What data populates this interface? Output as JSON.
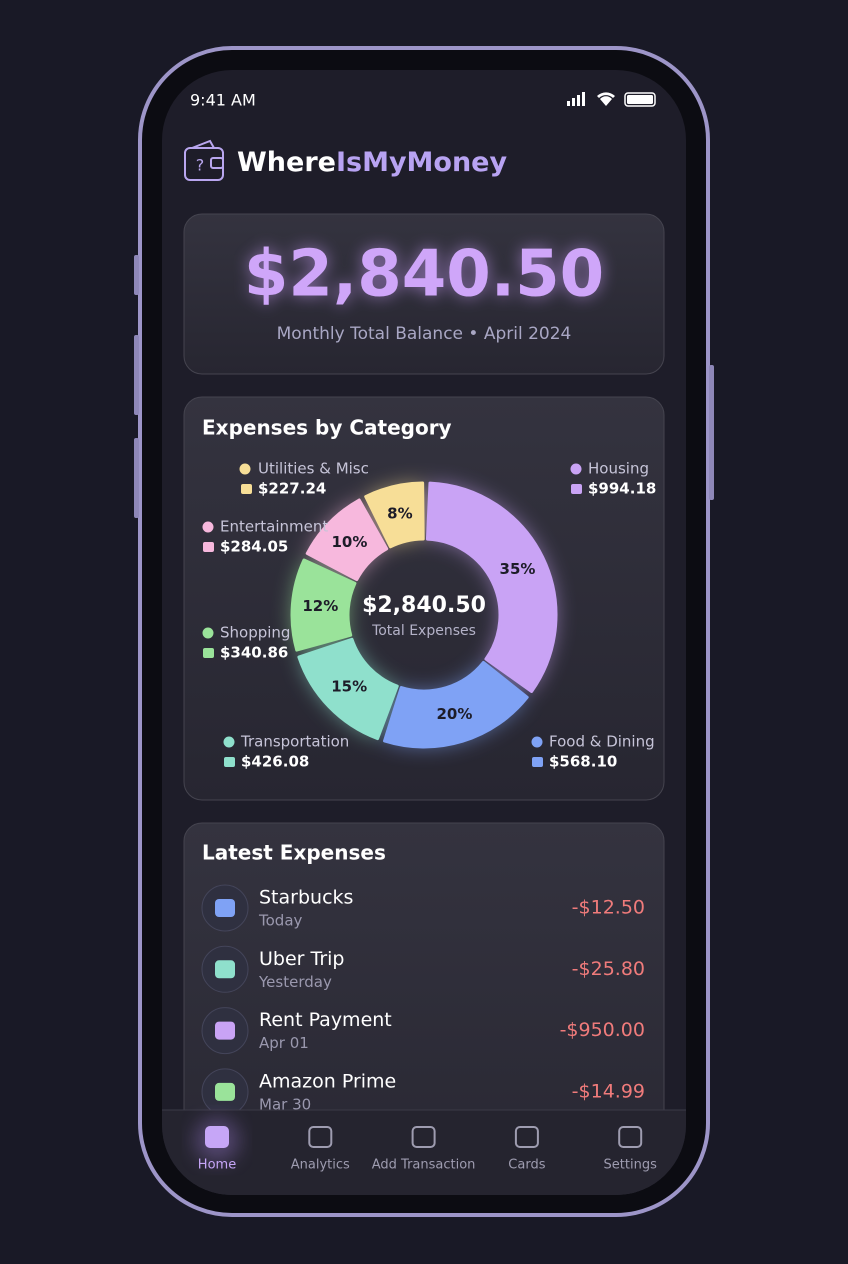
{
  "status_bar": {
    "time": "9:41 AM"
  },
  "app": {
    "title_part1": "Where",
    "title_part2": "IsMyMoney"
  },
  "balance": {
    "amount": "$2,840.50",
    "subtitle": "Monthly Total Balance • April 2024"
  },
  "chart_data": {
    "type": "pie",
    "title": "Expenses by Category",
    "categories": [
      "Housing",
      "Food & Dining",
      "Transportation",
      "Shopping",
      "Entertainment",
      "Utilities & Misc"
    ],
    "values": [
      35,
      20,
      15,
      12,
      10,
      8
    ],
    "value_labels": [
      "35%",
      "20%",
      "15%",
      "12%",
      "10%",
      "8%"
    ],
    "amount_labels": [
      "$994.18",
      "$568.10",
      "$426.08",
      "$340.86",
      "$284.05",
      "$227.24"
    ],
    "colors": [
      "#c9a3f5",
      "#7fa2f5",
      "#8fe0cc",
      "#9ae39a",
      "#f7b8dd",
      "#f7de97"
    ],
    "center_value": "$2,840.50",
    "center_label": "Total Expenses"
  },
  "latest_expenses": {
    "title": "Latest Expenses",
    "items": [
      {
        "name": "Starbucks",
        "date": "Today",
        "amount": "-$12.50"
      },
      {
        "name": "Uber Trip",
        "date": "Yesterday",
        "amount": "-$25.80"
      },
      {
        "name": "Rent Payment",
        "date": "Apr 01",
        "amount": "-$950.00"
      },
      {
        "name": "Amazon Prime",
        "date": "Mar 30",
        "amount": "-$14.99"
      }
    ]
  },
  "nav": {
    "items": [
      "Home",
      "Analytics",
      "Add Transaction",
      "Cards",
      "Settings"
    ]
  }
}
